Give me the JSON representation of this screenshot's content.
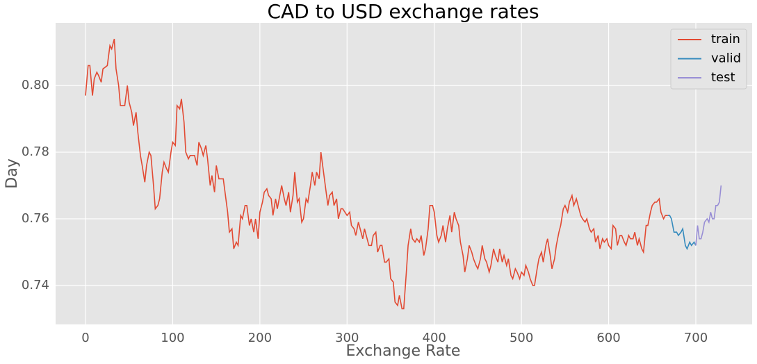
{
  "chart_data": {
    "type": "line",
    "title": "CAD to USD exchange rates",
    "x_label": "Exchange Rate",
    "y_label": "Day",
    "xlim": [
      -34.3,
      764.6
    ],
    "ylim": [
      0.7283,
      0.8188
    ],
    "xticks": [
      0,
      100,
      200,
      300,
      400,
      500,
      600,
      700
    ],
    "yticks": [
      0.74,
      0.76,
      0.78,
      {
        "value": 0.8,
        "label": "0.80"
      }
    ],
    "grid": true,
    "legend": "upper right",
    "series": [
      {
        "name": "train",
        "color": "#e24a33",
        "x": [
          0,
          3,
          5,
          8,
          10,
          13,
          15,
          18,
          20,
          25,
          28,
          30,
          33,
          35,
          38,
          40,
          45,
          48,
          50,
          53,
          55,
          58,
          60,
          63,
          65,
          68,
          70,
          73,
          75,
          78,
          80,
          83,
          85,
          88,
          90,
          93,
          95,
          98,
          100,
          103,
          105,
          108,
          110,
          113,
          115,
          118,
          120,
          125,
          128,
          130,
          133,
          135,
          138,
          140,
          143,
          145,
          148,
          150,
          153,
          155,
          158,
          160,
          163,
          165,
          168,
          170,
          173,
          175,
          178,
          180,
          183,
          185,
          188,
          190,
          193,
          195,
          198,
          200,
          203,
          205,
          208,
          210,
          213,
          215,
          218,
          220,
          225,
          228,
          230,
          233,
          235,
          238,
          240,
          243,
          245,
          248,
          250,
          253,
          255,
          258,
          260,
          263,
          265,
          268,
          270,
          273,
          275,
          278,
          280,
          283,
          285,
          288,
          290,
          293,
          295,
          300,
          303,
          305,
          308,
          310,
          313,
          315,
          318,
          320,
          325,
          328,
          330,
          333,
          335,
          338,
          340,
          343,
          345,
          348,
          350,
          353,
          355,
          358,
          360,
          363,
          365,
          368,
          370,
          373,
          375,
          378,
          380,
          383,
          385,
          388,
          390,
          393,
          395,
          398,
          400,
          403,
          405,
          408,
          410,
          413,
          415,
          418,
          420,
          423,
          425,
          428,
          430,
          433,
          435,
          438,
          440,
          443,
          445,
          448,
          450,
          453,
          455,
          458,
          460,
          463,
          465,
          468,
          470,
          473,
          475,
          478,
          480,
          483,
          485,
          488,
          490,
          493,
          495,
          498,
          500,
          503,
          505,
          508,
          510,
          513,
          515,
          518,
          520,
          523,
          525,
          528,
          530,
          533,
          535,
          538,
          540,
          543,
          545,
          548,
          550,
          553,
          555,
          558,
          560,
          563,
          565,
          568,
          570,
          573,
          575,
          578,
          580,
          583,
          585,
          588,
          590,
          593,
          595,
          598,
          600,
          603,
          605,
          608,
          610,
          613,
          615,
          618,
          620,
          623,
          625,
          628,
          630,
          633,
          635,
          638,
          640,
          643,
          645,
          648,
          650,
          653,
          655,
          658,
          660,
          663,
          665,
          668
        ],
        "values": [
          0.797,
          0.806,
          0.806,
          0.797,
          0.802,
          0.804,
          0.803,
          0.801,
          0.805,
          0.806,
          0.812,
          0.811,
          0.814,
          0.805,
          0.8,
          0.794,
          0.794,
          0.8,
          0.795,
          0.792,
          0.788,
          0.792,
          0.786,
          0.779,
          0.776,
          0.771,
          0.776,
          0.78,
          0.779,
          0.77,
          0.763,
          0.764,
          0.766,
          0.774,
          0.777,
          0.775,
          0.774,
          0.78,
          0.783,
          0.782,
          0.794,
          0.793,
          0.796,
          0.789,
          0.78,
          0.778,
          0.779,
          0.779,
          0.776,
          0.783,
          0.781,
          0.779,
          0.782,
          0.778,
          0.77,
          0.773,
          0.768,
          0.776,
          0.772,
          0.772,
          0.772,
          0.768,
          0.762,
          0.756,
          0.757,
          0.751,
          0.753,
          0.752,
          0.761,
          0.76,
          0.764,
          0.764,
          0.758,
          0.76,
          0.756,
          0.76,
          0.754,
          0.762,
          0.765,
          0.768,
          0.769,
          0.767,
          0.766,
          0.761,
          0.766,
          0.763,
          0.77,
          0.766,
          0.764,
          0.768,
          0.762,
          0.767,
          0.774,
          0.765,
          0.766,
          0.759,
          0.76,
          0.766,
          0.765,
          0.77,
          0.774,
          0.77,
          0.774,
          0.772,
          0.78,
          0.774,
          0.77,
          0.764,
          0.767,
          0.768,
          0.764,
          0.766,
          0.76,
          0.763,
          0.763,
          0.761,
          0.762,
          0.758,
          0.757,
          0.755,
          0.759,
          0.757,
          0.754,
          0.757,
          0.752,
          0.752,
          0.755,
          0.756,
          0.75,
          0.752,
          0.752,
          0.747,
          0.747,
          0.748,
          0.742,
          0.741,
          0.735,
          0.734,
          0.737,
          0.733,
          0.733,
          0.744,
          0.752,
          0.757,
          0.754,
          0.753,
          0.754,
          0.753,
          0.755,
          0.749,
          0.751,
          0.757,
          0.764,
          0.764,
          0.762,
          0.755,
          0.753,
          0.755,
          0.758,
          0.753,
          0.757,
          0.761,
          0.756,
          0.762,
          0.76,
          0.758,
          0.753,
          0.749,
          0.744,
          0.748,
          0.752,
          0.75,
          0.748,
          0.746,
          0.745,
          0.748,
          0.752,
          0.748,
          0.747,
          0.744,
          0.746,
          0.751,
          0.749,
          0.747,
          0.751,
          0.747,
          0.749,
          0.746,
          0.748,
          0.743,
          0.742,
          0.745,
          0.744,
          0.742,
          0.744,
          0.743,
          0.746,
          0.744,
          0.742,
          0.74,
          0.74,
          0.745,
          0.748,
          0.75,
          0.747,
          0.752,
          0.754,
          0.749,
          0.745,
          0.748,
          0.752,
          0.756,
          0.758,
          0.763,
          0.764,
          0.762,
          0.765,
          0.767,
          0.764,
          0.766,
          0.764,
          0.761,
          0.76,
          0.759,
          0.76,
          0.757,
          0.756,
          0.757,
          0.753,
          0.755,
          0.751,
          0.754,
          0.753,
          0.754,
          0.752,
          0.751,
          0.758,
          0.757,
          0.752,
          0.755,
          0.755,
          0.753,
          0.752,
          0.755,
          0.754,
          0.754,
          0.756,
          0.752,
          0.754,
          0.751,
          0.75,
          0.758,
          0.758,
          0.762,
          0.764,
          0.765,
          0.765,
          0.766,
          0.762,
          0.76,
          0.761,
          0.761
        ]
      },
      {
        "name": "valid",
        "color": "#348abd",
        "x": [
          668,
          670,
          672,
          675,
          678,
          680,
          683,
          685,
          688,
          690,
          693,
          695,
          698,
          700
        ],
        "values": [
          0.761,
          0.761,
          0.76,
          0.756,
          0.756,
          0.755,
          0.756,
          0.757,
          0.752,
          0.751,
          0.753,
          0.752,
          0.753,
          0.752
        ]
      },
      {
        "name": "test",
        "color": "#988ed5",
        "x": [
          700,
          702,
          704,
          706,
          708,
          710,
          713,
          715,
          717,
          719,
          721,
          723,
          725,
          727,
          729
        ],
        "values": [
          0.752,
          0.758,
          0.754,
          0.754,
          0.756,
          0.759,
          0.76,
          0.759,
          0.762,
          0.76,
          0.76,
          0.764,
          0.764,
          0.765,
          0.77
        ]
      }
    ]
  }
}
